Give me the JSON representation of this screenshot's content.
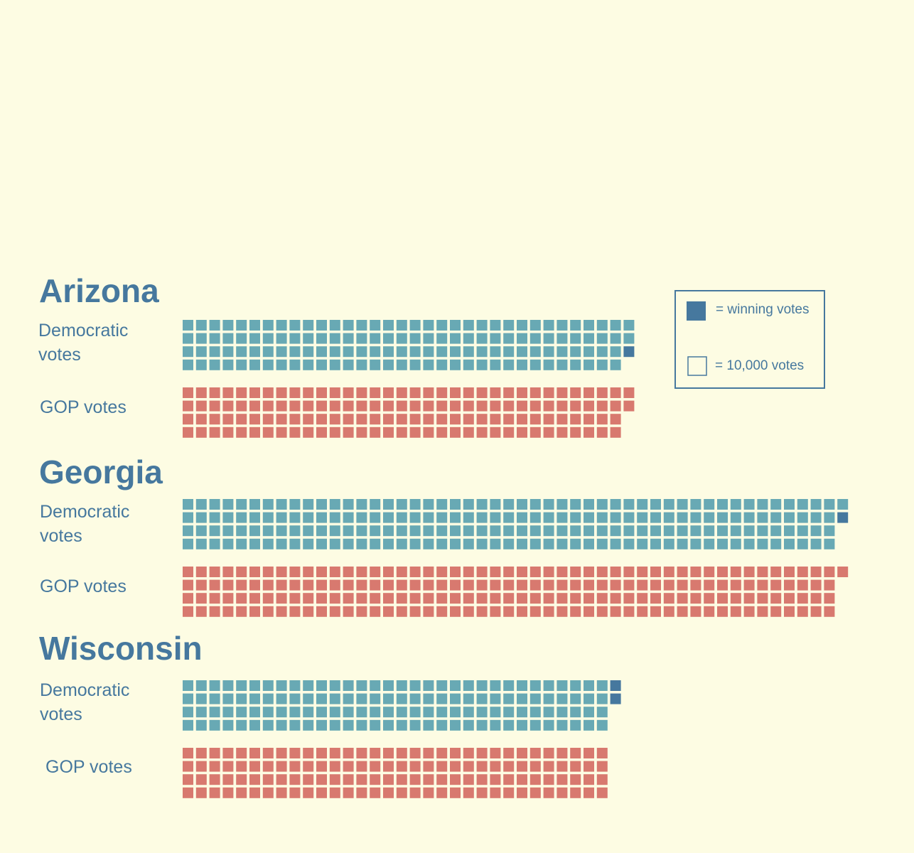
{
  "chart_data": {
    "type": "waffle",
    "unit_votes": 10000,
    "colors": {
      "democratic": "#68a9b4",
      "gop": "#d8796f",
      "winning": "#46789e",
      "text": "#46789e",
      "background": "#fdfce3"
    },
    "legend": {
      "winning_label": "= winning votes",
      "unit_label": "= 10,000 votes"
    },
    "states": [
      {
        "name": "Arizona",
        "democratic": {
          "label_line1": "Democratic",
          "label_line2": "votes",
          "squares": 135,
          "winning_squares": 1
        },
        "gop": {
          "label": "GOP votes",
          "squares": 134
        }
      },
      {
        "name": "Georgia",
        "democratic": {
          "label_line1": "Democratic",
          "label_line2": "votes",
          "squares": 198,
          "winning_squares": 1
        },
        "gop": {
          "label": "GOP votes",
          "squares": 197
        }
      },
      {
        "name": "Wisconsin",
        "democratic": {
          "label_line1": "Democratic",
          "label_line2": "votes",
          "squares": 130,
          "winning_squares": 2
        },
        "gop": {
          "label": "GOP votes",
          "squares": 128
        }
      }
    ]
  }
}
